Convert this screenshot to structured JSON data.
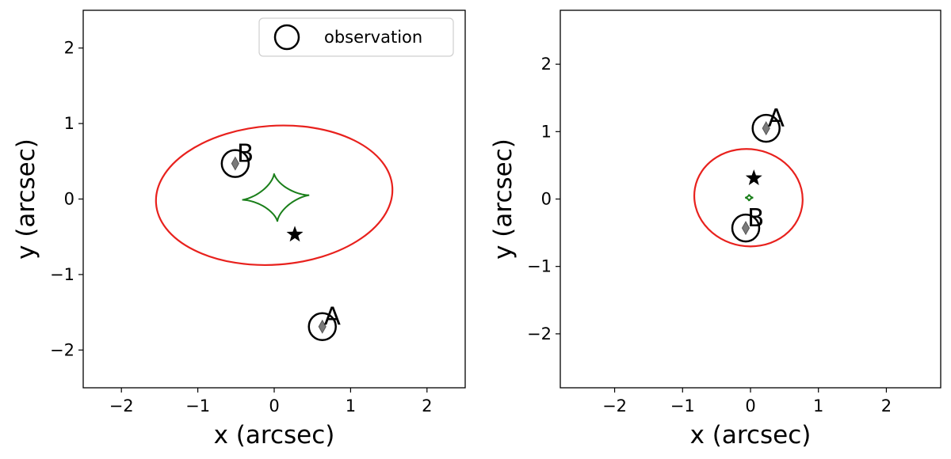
{
  "chart_data": [
    {
      "type": "scatter",
      "title": "",
      "xlabel": "x (arcsec)",
      "ylabel": "y (arcsec)",
      "xlim": [
        -2.5,
        2.5
      ],
      "ylim": [
        -2.5,
        2.5
      ],
      "xticks": [
        -2,
        -1,
        0,
        1,
        2
      ],
      "yticks": [
        -2,
        -1,
        0,
        1,
        2
      ],
      "xtick_labels": [
        "−2",
        "−1",
        "0",
        "1",
        "2"
      ],
      "ytick_labels": [
        "−2",
        "−1",
        "0",
        "1",
        "2"
      ],
      "grid": false,
      "legend": {
        "show": true,
        "placement": "top-right",
        "entries": [
          "observation"
        ]
      },
      "critical_curve": {
        "color": "#e8211d",
        "center": [
          0.0,
          0.05
        ],
        "semi_axes": [
          1.55,
          0.92
        ],
        "rotation_deg": 4
      },
      "caustic": {
        "color": "#1a7f1a",
        "center": [
          0.02,
          0.02
        ],
        "half_x": 0.44,
        "half_y": 0.32,
        "rotation_deg": 4
      },
      "source": {
        "x": 0.27,
        "y": -0.47,
        "color": "#000000"
      },
      "images": [
        {
          "label": "B",
          "x": -0.51,
          "y": 0.47,
          "model_x": -0.51,
          "model_y": 0.47
        },
        {
          "label": "A",
          "x": 0.63,
          "y": -1.69,
          "model_x": 0.63,
          "model_y": -1.69
        }
      ]
    },
    {
      "type": "scatter",
      "title": "",
      "xlabel": "x (arcsec)",
      "ylabel": "y (arcsec)",
      "xlim": [
        -2.8,
        2.8
      ],
      "ylim": [
        -2.8,
        2.8
      ],
      "xticks": [
        -2,
        -1,
        0,
        1,
        2
      ],
      "yticks": [
        -2,
        -1,
        0,
        1,
        2
      ],
      "xtick_labels": [
        "−2",
        "−1",
        "0",
        "1",
        "2"
      ],
      "ytick_labels": [
        "−2",
        "−1",
        "0",
        "1",
        "2"
      ],
      "grid": false,
      "legend": {
        "show": false
      },
      "critical_curve": {
        "color": "#e8211d",
        "center": [
          -0.03,
          0.02
        ],
        "semi_axes": [
          0.8,
          0.72
        ],
        "rotation_deg": -10
      },
      "caustic": {
        "color": "#1a7f1a",
        "center": [
          -0.02,
          0.02
        ],
        "half_x": 0.06,
        "half_y": 0.05,
        "rotation_deg": 0
      },
      "source": {
        "x": 0.05,
        "y": 0.31,
        "color": "#000000"
      },
      "images": [
        {
          "label": "A",
          "x": 0.23,
          "y": 1.05,
          "model_x": 0.23,
          "model_y": 1.05
        },
        {
          "label": "B",
          "x": -0.07,
          "y": -0.43,
          "model_x": -0.07,
          "model_y": -0.43
        }
      ]
    }
  ]
}
